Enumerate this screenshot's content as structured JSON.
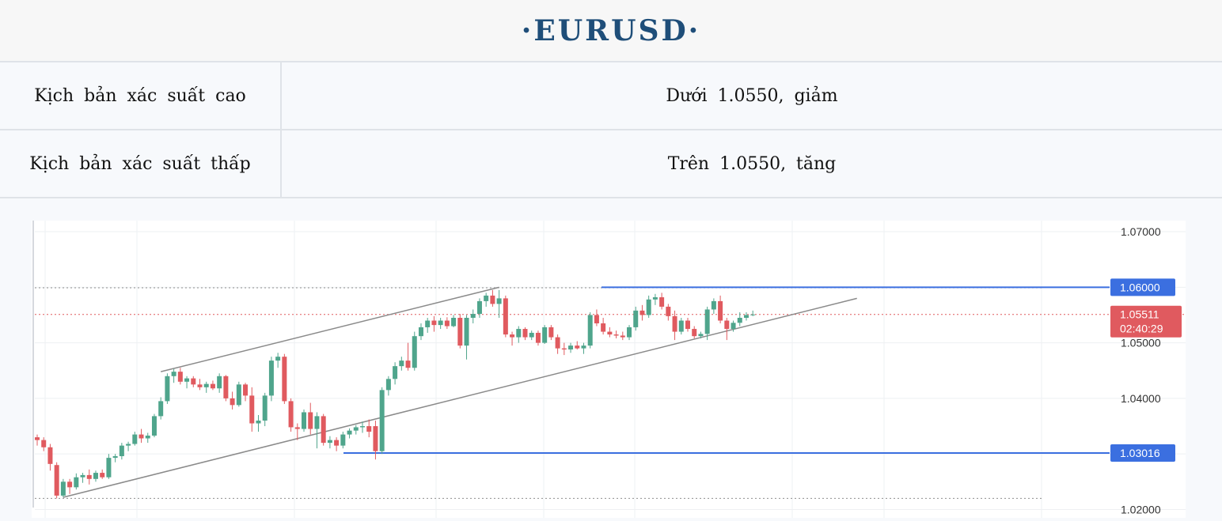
{
  "header": {
    "title": "·EURUSD·"
  },
  "scenarios": [
    {
      "label": "Kịch bản xác suất cao",
      "value": "Dưới 1.0550, giảm"
    },
    {
      "label": "Kịch bản xác suất thấp",
      "value": "Trên 1.0550, tăng"
    }
  ],
  "colors": {
    "up": "#4fa58c",
    "down": "#e05a5f",
    "level_line": "#3b6fe0",
    "trend_line": "#8a8a8a",
    "title": "#1f4e79"
  },
  "chart_data": {
    "type": "candlestick",
    "symbol": "EURUSD",
    "ylim": [
      1.0185,
      1.072
    ],
    "y_ticks": [
      "1.07000",
      "1.06000",
      "1.05000",
      "1.04000",
      "1.03000",
      "1.02000"
    ],
    "tick_values": [
      1.07,
      1.06,
      1.05,
      1.04,
      1.03,
      1.02
    ],
    "grid": true,
    "horizontal_levels": [
      {
        "label": "1.06000",
        "value": 1.06
      },
      {
        "label": "1.03016",
        "value": 1.03016
      }
    ],
    "current_price": {
      "label": "1.05511",
      "timer": "02:40:29",
      "value": 1.05511
    },
    "dotted_levels": [
      1.0599,
      1.022
    ],
    "trendlines": [
      {
        "from": [
          19,
          1.0448
        ],
        "to": [
          71,
          1.06
        ]
      },
      {
        "from": [
          4,
          1.0222
        ],
        "to": [
          126,
          1.058
        ]
      }
    ],
    "candles": [
      [
        1.033,
        1.0335,
        1.0315,
        1.0325
      ],
      [
        1.0325,
        1.033,
        1.0305,
        1.0312
      ],
      [
        1.0312,
        1.0318,
        1.027,
        1.0282
      ],
      [
        1.028,
        1.0285,
        1.022,
        1.0225
      ],
      [
        1.0225,
        1.0255,
        1.0222,
        1.025
      ],
      [
        1.025,
        1.0255,
        1.0228,
        1.024
      ],
      [
        1.024,
        1.0265,
        1.0236,
        1.0258
      ],
      [
        1.0258,
        1.0266,
        1.0248,
        1.0262
      ],
      [
        1.0262,
        1.0272,
        1.0245,
        1.0255
      ],
      [
        1.0255,
        1.027,
        1.025,
        1.0266
      ],
      [
        1.0266,
        1.0272,
        1.0255,
        1.0258
      ],
      [
        1.0258,
        1.03,
        1.0255,
        1.0293
      ],
      [
        1.0293,
        1.03,
        1.0285,
        1.0296
      ],
      [
        1.0296,
        1.032,
        1.029,
        1.0315
      ],
      [
        1.0315,
        1.0322,
        1.0305,
        1.0318
      ],
      [
        1.0318,
        1.034,
        1.0315,
        1.0335
      ],
      [
        1.0335,
        1.0345,
        1.032,
        1.0328
      ],
      [
        1.0328,
        1.0338,
        1.032,
        1.0333
      ],
      [
        1.0333,
        1.0372,
        1.033,
        1.0368
      ],
      [
        1.0368,
        1.0402,
        1.0362,
        1.0395
      ],
      [
        1.0395,
        1.0445,
        1.039,
        1.044
      ],
      [
        1.044,
        1.0453,
        1.0428,
        1.0448
      ],
      [
        1.0448,
        1.0455,
        1.0425,
        1.043
      ],
      [
        1.043,
        1.044,
        1.0418,
        1.0436
      ],
      [
        1.0436,
        1.044,
        1.042,
        1.0425
      ],
      [
        1.0425,
        1.0435,
        1.0415,
        1.042
      ],
      [
        1.042,
        1.043,
        1.041,
        1.0426
      ],
      [
        1.0426,
        1.0432,
        1.0415,
        1.0418
      ],
      [
        1.0418,
        1.0445,
        1.041,
        1.044
      ],
      [
        1.044,
        1.0442,
        1.0395,
        1.04
      ],
      [
        1.04,
        1.0412,
        1.038,
        1.0388
      ],
      [
        1.0388,
        1.043,
        1.0385,
        1.0425
      ],
      [
        1.0425,
        1.0428,
        1.0395,
        1.0405
      ],
      [
        1.0405,
        1.042,
        1.034,
        1.0355
      ],
      [
        1.0355,
        1.037,
        1.034,
        1.036
      ],
      [
        1.036,
        1.041,
        1.035,
        1.0405
      ],
      [
        1.0405,
        1.0475,
        1.0395,
        1.0468
      ],
      [
        1.0468,
        1.0482,
        1.0455,
        1.0475
      ],
      [
        1.0475,
        1.048,
        1.039,
        1.0395
      ],
      [
        1.0395,
        1.04,
        1.034,
        1.0348
      ],
      [
        1.0348,
        1.0355,
        1.0325,
        1.0345
      ],
      [
        1.0345,
        1.038,
        1.034,
        1.0375
      ],
      [
        1.0375,
        1.0392,
        1.0335,
        1.0345
      ],
      [
        1.0345,
        1.0375,
        1.031,
        1.0368
      ],
      [
        1.0368,
        1.0372,
        1.0315,
        1.032
      ],
      [
        1.032,
        1.0332,
        1.031,
        1.0325
      ],
      [
        1.0325,
        1.033,
        1.0305,
        1.0315
      ],
      [
        1.0315,
        1.034,
        1.031,
        1.0335
      ],
      [
        1.0335,
        1.0346,
        1.0328,
        1.0342
      ],
      [
        1.0342,
        1.0352,
        1.0335,
        1.0348
      ],
      [
        1.0348,
        1.0358,
        1.0338,
        1.035
      ],
      [
        1.035,
        1.0362,
        1.033,
        1.034
      ],
      [
        1.035,
        1.036,
        1.029,
        1.0305
      ],
      [
        1.0305,
        1.042,
        1.03,
        1.0415
      ],
      [
        1.0415,
        1.044,
        1.0405,
        1.0435
      ],
      [
        1.0435,
        1.0465,
        1.0425,
        1.0458
      ],
      [
        1.0458,
        1.0475,
        1.045,
        1.0468
      ],
      [
        1.0468,
        1.05,
        1.045,
        1.0455
      ],
      [
        1.0455,
        1.052,
        1.045,
        1.0512
      ],
      [
        1.0512,
        1.0535,
        1.0505,
        1.0528
      ],
      [
        1.0528,
        1.0545,
        1.0518,
        1.054
      ],
      [
        1.054,
        1.0548,
        1.052,
        1.0532
      ],
      [
        1.0532,
        1.0545,
        1.0525,
        1.054
      ],
      [
        1.054,
        1.0546,
        1.0525,
        1.053
      ],
      [
        1.053,
        1.055,
        1.0528,
        1.0545
      ],
      [
        1.0545,
        1.0552,
        1.049,
        1.0495
      ],
      [
        1.0495,
        1.055,
        1.047,
        1.0545
      ],
      [
        1.0545,
        1.056,
        1.0535,
        1.0552
      ],
      [
        1.0552,
        1.058,
        1.0545,
        1.0575
      ],
      [
        1.0575,
        1.059,
        1.0565,
        1.0585
      ],
      [
        1.0585,
        1.0595,
        1.0565,
        1.057
      ],
      [
        1.057,
        1.0595,
        1.0545,
        1.058
      ],
      [
        1.058,
        1.0585,
        1.051,
        1.0515
      ],
      [
        1.0515,
        1.052,
        1.0495,
        1.051
      ],
      [
        1.051,
        1.053,
        1.05,
        1.0525
      ],
      [
        1.0525,
        1.0528,
        1.0505,
        1.051
      ],
      [
        1.051,
        1.0522,
        1.0505,
        1.0518
      ],
      [
        1.0518,
        1.0522,
        1.0495,
        1.05
      ],
      [
        1.05,
        1.0532,
        1.0498,
        1.0528
      ],
      [
        1.0528,
        1.0532,
        1.0505,
        1.051
      ],
      [
        1.051,
        1.0515,
        1.048,
        1.049
      ],
      [
        1.049,
        1.05,
        1.0478,
        1.0488
      ],
      [
        1.0488,
        1.05,
        1.0482,
        1.0495
      ],
      [
        1.0495,
        1.0503,
        1.0488,
        1.049
      ],
      [
        1.049,
        1.05,
        1.048,
        1.0495
      ],
      [
        1.0495,
        1.0555,
        1.049,
        1.055
      ],
      [
        1.055,
        1.056,
        1.053,
        1.0535
      ],
      [
        1.0535,
        1.0545,
        1.0515,
        1.052
      ],
      [
        1.052,
        1.0528,
        1.051,
        1.0515
      ],
      [
        1.0515,
        1.0522,
        1.0508,
        1.0513
      ],
      [
        1.0513,
        1.052,
        1.0505,
        1.051
      ],
      [
        1.051,
        1.0532,
        1.0505,
        1.0528
      ],
      [
        1.0528,
        1.0565,
        1.0522,
        1.0558
      ],
      [
        1.0558,
        1.0568,
        1.054,
        1.055
      ],
      [
        1.055,
        1.0585,
        1.0545,
        1.0578
      ],
      [
        1.0578,
        1.0588,
        1.0568,
        1.0582
      ],
      [
        1.0582,
        1.059,
        1.056,
        1.0565
      ],
      [
        1.0565,
        1.057,
        1.054,
        1.0548
      ],
      [
        1.0548,
        1.0558,
        1.0505,
        1.052
      ],
      [
        1.052,
        1.0545,
        1.0515,
        1.054
      ],
      [
        1.054,
        1.0545,
        1.052,
        1.0525
      ],
      [
        1.0525,
        1.053,
        1.0508,
        1.0512
      ],
      [
        1.0512,
        1.052,
        1.0508,
        1.0516
      ],
      [
        1.0516,
        1.0565,
        1.0505,
        1.056
      ],
      [
        1.056,
        1.058,
        1.0552,
        1.0575
      ],
      [
        1.0575,
        1.0585,
        1.0535,
        1.054
      ],
      [
        1.054,
        1.0545,
        1.0505,
        1.0525
      ],
      [
        1.0525,
        1.054,
        1.052,
        1.0536
      ],
      [
        1.0536,
        1.0555,
        1.053,
        1.0545
      ],
      [
        1.0545,
        1.0555,
        1.054,
        1.055
      ],
      [
        1.055,
        1.0558,
        1.0548,
        1.0551
      ]
    ]
  }
}
